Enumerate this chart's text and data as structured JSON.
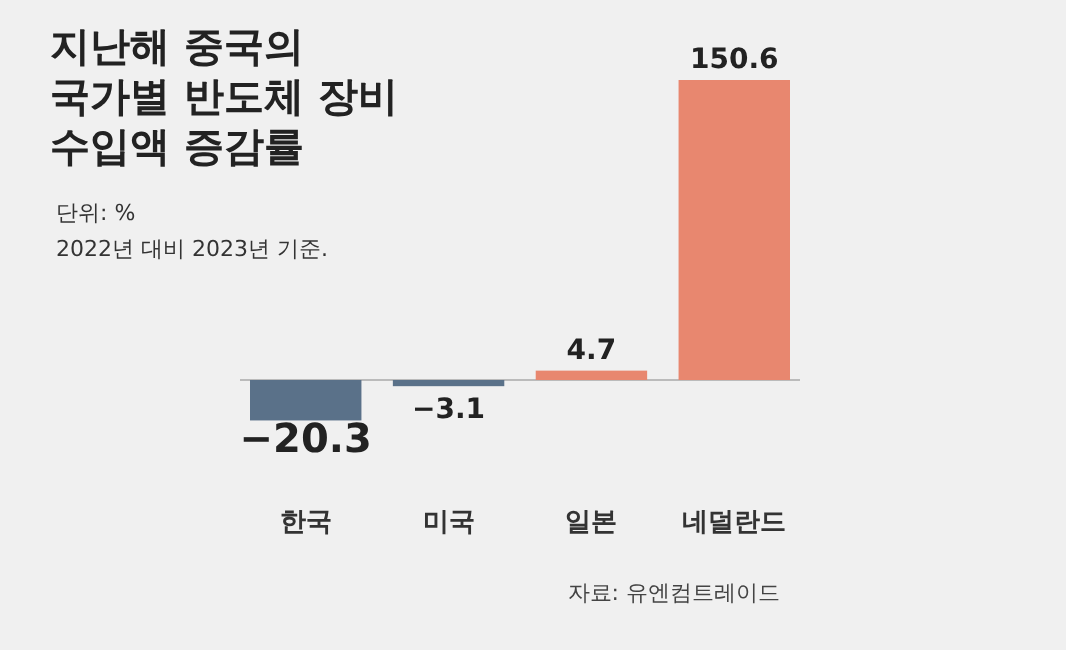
{
  "chart_data": {
    "type": "bar",
    "title": "지난해 중국의\n국가별 반도체 장비\n수입액 증감률",
    "subtitle": "단위: %",
    "annotations": [
      "2022년 대비 2023년 기준.",
      "자료: 유엔컴트레이드"
    ],
    "categories": [
      "한국",
      "미국",
      "일본",
      "네덜란드"
    ],
    "values": [
      -20.3,
      -3.1,
      4.7,
      150.6
    ],
    "colors": [
      "#5a7189",
      "#5a7189",
      "#e8876f",
      "#e8876f"
    ],
    "data_labels": true,
    "relative": false
  }
}
